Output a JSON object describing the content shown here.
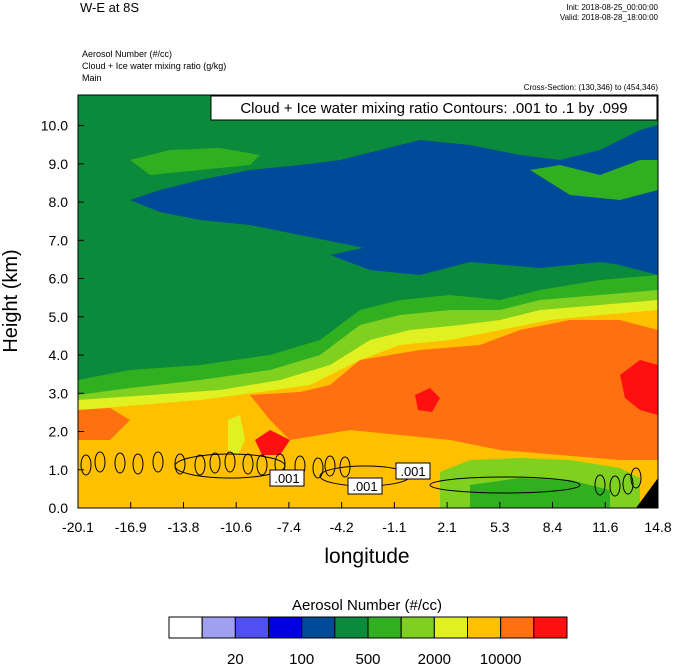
{
  "header": {
    "title": "W-E at 8S",
    "init": "Init: 2018-08-25_00:00:00",
    "valid": "Valid: 2018-08-28_18:00:00",
    "fields": [
      "Aerosol Number   (#/cc)",
      "Cloud + Ice water mixing ratio   (g/kg)",
      "Main"
    ],
    "cross_section": "Cross-Section: (130,346) to (454,346)"
  },
  "chart_data": {
    "type": "heatmap",
    "contour_label": "Cloud + Ice water mixing ratio Contours: .001 to .1 by .099",
    "xlabel": "longitude",
    "ylabel": "Height (km)",
    "xlim": [
      -20.1,
      14.8
    ],
    "ylim": [
      0.0,
      10.8
    ],
    "x_ticks": [
      "-20.1",
      "-16.9",
      "-13.8",
      "-10.6",
      "-7.4",
      "-4.2",
      "-1.1",
      "2.1",
      "5.3",
      "8.4",
      "11.6",
      "14.8"
    ],
    "y_ticks": [
      "0.0",
      "1.0",
      "2.0",
      "3.0",
      "4.0",
      "5.0",
      "6.0",
      "7.0",
      "8.0",
      "9.0",
      "10.0"
    ],
    "contour_labels": [
      ".001",
      ".001",
      ".001"
    ],
    "colorbar": {
      "title": "Aerosol Number  (#/cc)",
      "colors": [
        "#ffffff",
        "#a0a0f0",
        "#5050f0",
        "#0000e0",
        "#004a9a",
        "#0a8a3a",
        "#30b020",
        "#80d020",
        "#e0f020",
        "#ffc000",
        "#ff7010",
        "#ff1010"
      ],
      "tick_labels": [
        "20",
        "100",
        "500",
        "2000",
        "10000"
      ]
    }
  }
}
